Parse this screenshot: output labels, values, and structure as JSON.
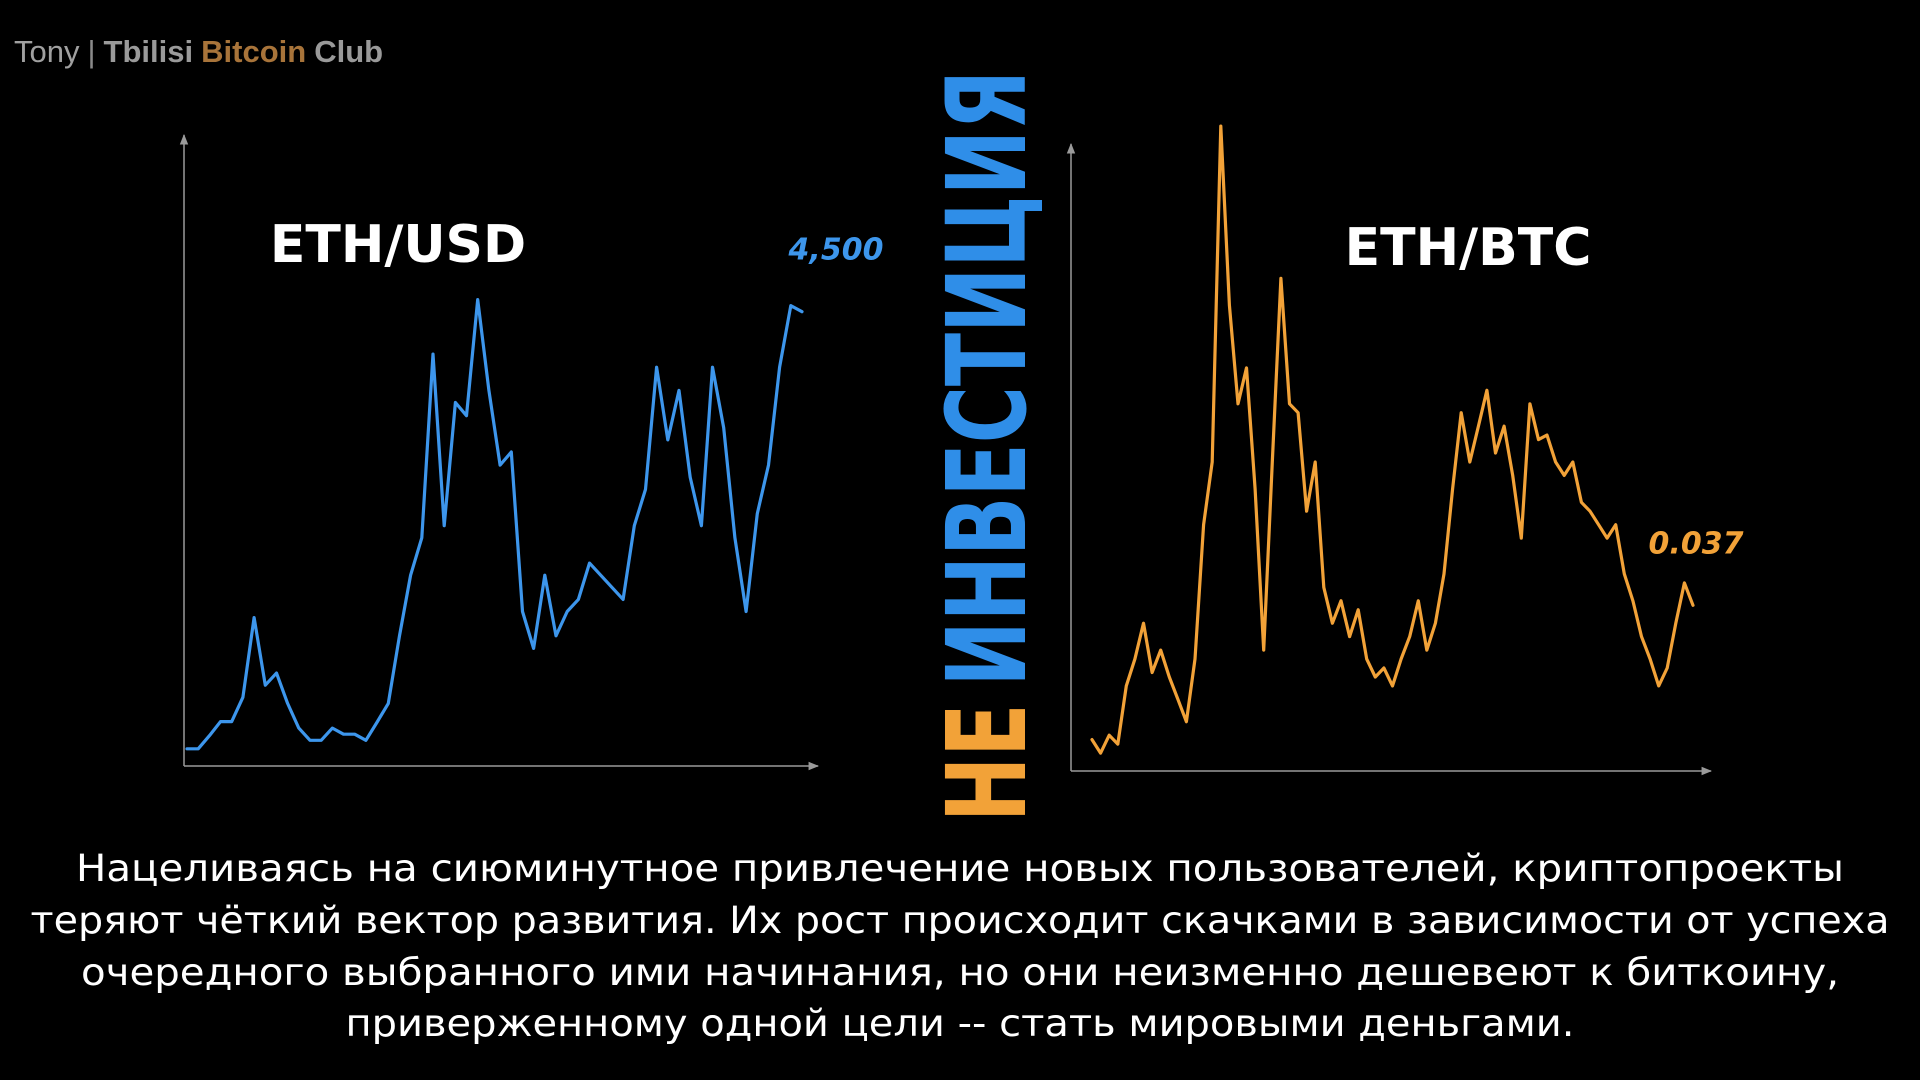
{
  "header": {
    "author": "Tony",
    "separator": "|",
    "club": [
      "Tbilisi",
      "Bitcoin",
      "Club"
    ]
  },
  "vertical_text": [
    "НЕ",
    "ИНВЕСТИЦИЯ"
  ],
  "caption": [
    "Нацеливаясь на сиюминутное привлечение новых пользователей, криптопроекты",
    "теряют чёткий вектор развития. Их рост происходит скачками в зависимости от успеха",
    "очередного выбранного ими начинания, но они неизменно дешевеют к биткоину,",
    "приверженному одной цели -- стать мировыми деньгами."
  ],
  "chart_data": [
    {
      "type": "line",
      "title": "ETH/USD",
      "ylim": [
        0,
        6250
      ],
      "series": [
        {
          "color": "#3d96ec",
          "values": [
            170,
            170,
            300,
            440,
            440,
            680,
            1470,
            800,
            920,
            620,
            375,
            255,
            255,
            375,
            315,
            315,
            255,
            435,
            620,
            1290,
            1890,
            2260,
            4080,
            2380,
            3600,
            3470,
            4620,
            3720,
            2980,
            3110,
            1530,
            1165,
            1890,
            1290,
            1530,
            1650,
            2010,
            1890,
            1770,
            1650,
            2380,
            2740,
            3950,
            3230,
            3720,
            2860,
            2380,
            3950,
            3350,
            2260,
            1530,
            2500,
            2980,
            3950,
            4560,
            4500
          ],
          "value_labels": [
            null,
            null,
            null,
            null,
            null,
            null,
            null,
            null,
            null,
            null,
            null,
            null,
            null,
            null,
            null,
            null,
            null,
            null,
            null,
            null,
            null,
            null,
            null,
            null,
            null,
            null,
            null,
            null,
            null,
            null,
            null,
            null,
            null,
            null,
            null,
            null,
            null,
            null,
            null,
            null,
            null,
            null,
            null,
            null,
            null,
            null,
            null,
            null,
            null,
            null,
            null,
            null,
            null,
            null,
            null,
            "4,500"
          ]
        }
      ]
    },
    {
      "type": "line",
      "title": "ETH/BTC",
      "ylim": [
        0,
        0.14
      ],
      "series": [
        {
          "color": "#f2a238",
          "values": [
            0.007,
            0.004,
            0.008,
            0.006,
            0.019,
            0.025,
            0.033,
            0.022,
            0.027,
            0.021,
            0.016,
            0.011,
            0.025,
            0.055,
            0.069,
            0.144,
            0.104,
            0.082,
            0.09,
            0.063,
            0.027,
            0.069,
            0.11,
            0.082,
            0.08,
            0.058,
            0.069,
            0.041,
            0.033,
            0.038,
            0.03,
            0.036,
            0.025,
            0.021,
            0.023,
            0.019,
            0.025,
            0.03,
            0.038,
            0.027,
            0.033,
            0.044,
            0.063,
            0.08,
            0.069,
            0.077,
            0.085,
            0.071,
            0.077,
            0.066,
            0.052,
            0.082,
            0.074,
            0.075,
            0.069,
            0.066,
            0.069,
            0.06,
            0.058,
            0.055,
            0.052,
            0.055,
            0.044,
            0.038,
            0.03,
            0.025,
            0.019,
            0.023,
            0.033,
            0.042,
            0.037
          ],
          "value_labels": [
            null,
            null,
            null,
            null,
            null,
            null,
            null,
            null,
            null,
            null,
            null,
            null,
            null,
            null,
            null,
            null,
            null,
            null,
            null,
            null,
            null,
            null,
            null,
            null,
            null,
            null,
            null,
            null,
            null,
            null,
            null,
            null,
            null,
            null,
            null,
            null,
            null,
            null,
            null,
            null,
            null,
            null,
            null,
            null,
            null,
            null,
            null,
            null,
            null,
            null,
            null,
            null,
            null,
            null,
            null,
            null,
            null,
            null,
            null,
            null,
            null,
            null,
            null,
            null,
            null,
            null,
            null,
            null,
            null,
            null,
            "0.037"
          ]
        }
      ]
    }
  ]
}
